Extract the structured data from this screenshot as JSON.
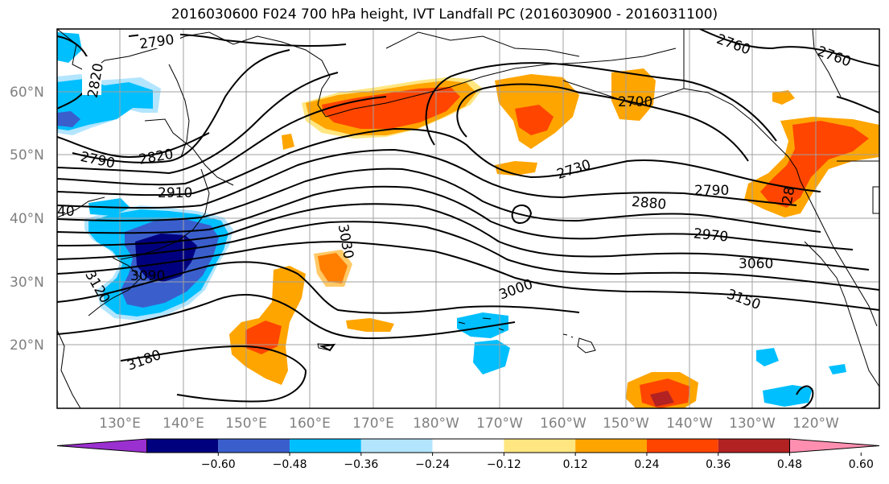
{
  "title": "2016030600 F024 700 hPa height, IVT Landfall PC (2016030900 - 2016031100)",
  "lat_labels": [
    "60°N",
    "50°N",
    "40°N",
    "30°N",
    "20°N"
  ],
  "lon_labels": [
    "130°E",
    "140°E",
    "150°E",
    "160°E",
    "170°E",
    "180°W",
    "170°W",
    "160°W",
    "150°W",
    "140°W",
    "130°W",
    "120°W"
  ],
  "colorbar": {
    "colors": [
      "#9b30d0",
      "#00007f",
      "#3a5fcd",
      "#00bfff",
      "#b3e5ff",
      "#ffffff",
      "#ffe680",
      "#ffa500",
      "#ff4500",
      "#b22222",
      "#ff8fb0"
    ],
    "ticks": [
      "−0.60",
      "−0.48",
      "−0.36",
      "−0.24",
      "−0.12",
      "0.12",
      "0.24",
      "0.36",
      "0.48",
      "0.60"
    ]
  },
  "contour_labels": [
    "2790",
    "2820",
    "2790",
    "2820",
    "2910",
    "40",
    "3090",
    "3120",
    "3180",
    "3030",
    "2760",
    "2760",
    "2700",
    "2730",
    "2790",
    "2880",
    "2970",
    "3060",
    "3000",
    "3150",
    "28"
  ]
}
